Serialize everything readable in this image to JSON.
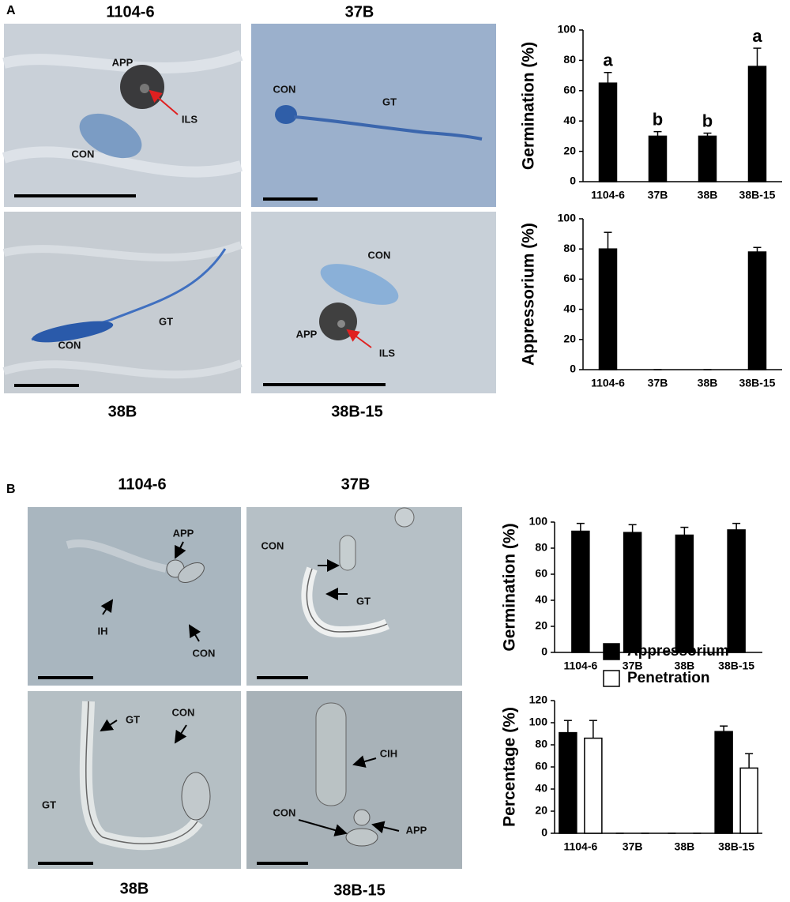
{
  "figure": {
    "panel_a": {
      "label": "A",
      "images": [
        {
          "title": "1104-6",
          "labels": [
            "APP",
            "ILS",
            "CON"
          ]
        },
        {
          "title": "37B",
          "labels": [
            "CON",
            "GT"
          ]
        },
        {
          "title": "38B",
          "labels": [
            "GT",
            "CON"
          ]
        },
        {
          "title": "38B-15",
          "labels": [
            "CON",
            "APP",
            "ILS"
          ]
        }
      ]
    },
    "panel_b": {
      "label": "B",
      "images": [
        {
          "title": "1104-6",
          "labels": [
            "APP",
            "IH",
            "CON"
          ]
        },
        {
          "title": "37B",
          "labels": [
            "CON",
            "GT"
          ]
        },
        {
          "title": "38B",
          "labels": [
            "GT",
            "CON",
            "GT"
          ]
        },
        {
          "title": "38B-15",
          "labels": [
            "CIH",
            "CON",
            "APP"
          ]
        }
      ]
    }
  },
  "chart_data": [
    {
      "type": "bar",
      "y_label": "Germination (%)",
      "categories": [
        "1104-6",
        "37B",
        "38B",
        "38B-15"
      ],
      "values": [
        65,
        30,
        30,
        76
      ],
      "errors": [
        7,
        3,
        2,
        12
      ],
      "color": "#000000",
      "annotations": [
        "a",
        "b",
        "b",
        "a"
      ],
      "ylim": [
        0,
        100
      ],
      "yticks": [
        0,
        20,
        40,
        60,
        80,
        100
      ]
    },
    {
      "type": "bar",
      "y_label": "Appressorium (%)",
      "categories": [
        "1104-6",
        "37B",
        "38B",
        "38B-15"
      ],
      "values": [
        80,
        0,
        0,
        78
      ],
      "errors": [
        11,
        0,
        0,
        3
      ],
      "color": "#000000",
      "ylim": [
        0,
        100
      ],
      "yticks": [
        0,
        20,
        40,
        60,
        80,
        100
      ]
    },
    {
      "type": "bar",
      "y_label": "Germination (%)",
      "categories": [
        "1104-6",
        "37B",
        "38B",
        "38B-15"
      ],
      "values": [
        93,
        92,
        90,
        94
      ],
      "errors": [
        6,
        6,
        6,
        5
      ],
      "color": "#000000",
      "ylim": [
        0,
        100
      ],
      "yticks": [
        0,
        20,
        40,
        60,
        80,
        100
      ]
    },
    {
      "type": "bar",
      "y_label": "Percentage (%)",
      "categories": [
        "1104-6",
        "37B",
        "38B",
        "38B-15"
      ],
      "series": [
        {
          "name": "Appressorium",
          "color": "#000000",
          "values": [
            91,
            0,
            0,
            92
          ],
          "errors": [
            11,
            0,
            0,
            5
          ]
        },
        {
          "name": "Penetration",
          "color": "#ffffff",
          "values": [
            86,
            0,
            0,
            59
          ],
          "errors": [
            16,
            0,
            0,
            13
          ]
        }
      ],
      "legend": "top",
      "ylim": [
        0,
        120
      ],
      "yticks": [
        0,
        20,
        40,
        60,
        80,
        100,
        120
      ]
    }
  ]
}
